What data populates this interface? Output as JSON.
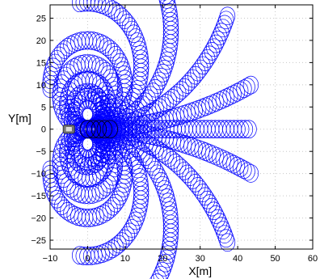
{
  "chart_data": {
    "type": "scatter",
    "title": "",
    "xlabel": "X[m]",
    "ylabel": "Y[m]",
    "xlim": [
      -10,
      60
    ],
    "ylim": [
      -27,
      28
    ],
    "x_ticks": [
      -10,
      0,
      10,
      20,
      30,
      40,
      50,
      60
    ],
    "y_ticks": [
      -25,
      -20,
      -15,
      -10,
      -5,
      0,
      5,
      10,
      15,
      20,
      25
    ],
    "x_tick_labels": [
      "−10",
      "0",
      "10",
      "20",
      "30",
      "40",
      "50",
      "60"
    ],
    "y_tick_labels": [
      "−25",
      "−20",
      "−15",
      "−10",
      "−5",
      "0",
      "5",
      "10",
      "15",
      "20",
      "25"
    ],
    "grid": true,
    "marker_color": "#0000ff",
    "vehicle": {
      "x": -5,
      "y": 0
    },
    "circle_radius": 2,
    "trajectories": [
      {
        "curvature": 0.3,
        "length": 30
      },
      {
        "curvature": 0.24,
        "length": 37
      },
      {
        "curvature": 0.18,
        "length": 44
      },
      {
        "curvature": 0.135,
        "length": 47
      },
      {
        "curvature": 0.1,
        "length": 48
      },
      {
        "curvature": 0.07,
        "length": 47
      },
      {
        "curvature": 0.045,
        "length": 48
      },
      {
        "curvature": 0.025,
        "length": 48
      },
      {
        "curvature": 0.01,
        "length": 45
      },
      {
        "curvature": 0.0,
        "length": 43
      },
      {
        "curvature": -0.01,
        "length": 45
      },
      {
        "curvature": -0.025,
        "length": 48
      },
      {
        "curvature": -0.045,
        "length": 48
      },
      {
        "curvature": -0.07,
        "length": 47
      },
      {
        "curvature": -0.1,
        "length": 48
      },
      {
        "curvature": -0.135,
        "length": 47
      },
      {
        "curvature": -0.18,
        "length": 44
      },
      {
        "curvature": -0.24,
        "length": 37
      },
      {
        "curvature": -0.3,
        "length": 30
      }
    ]
  }
}
